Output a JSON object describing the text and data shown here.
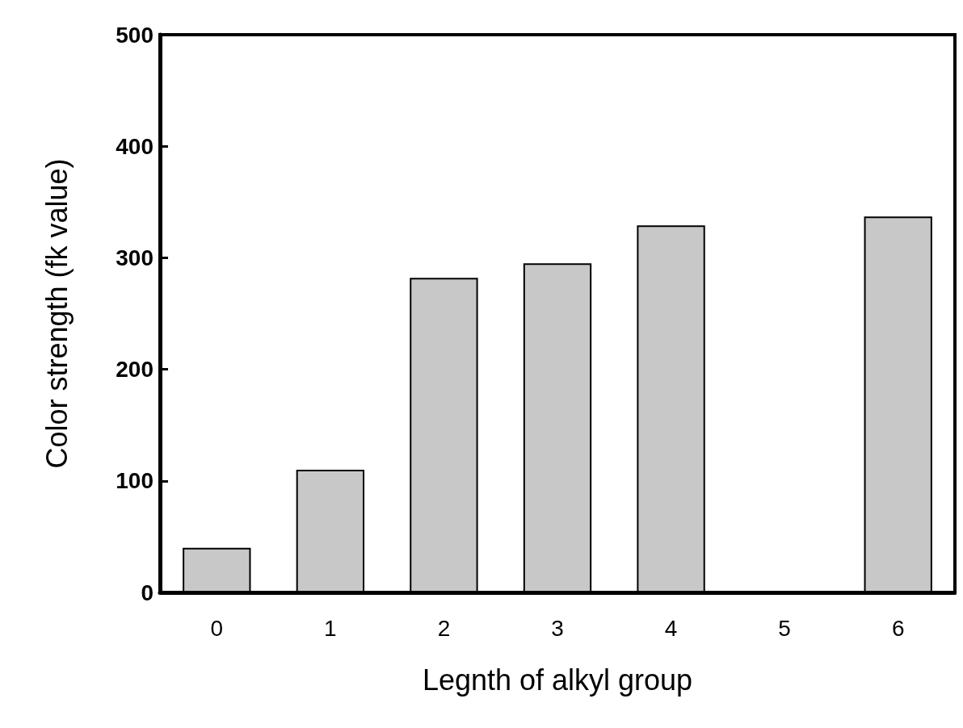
{
  "chart_data": {
    "type": "bar",
    "xlabel": "Legnth of alkyl group",
    "ylabel": "Color strength (fk value)",
    "categories": [
      "0",
      "1",
      "2",
      "3",
      "4",
      "5",
      "6"
    ],
    "values": [
      40,
      110,
      282,
      295,
      329,
      null,
      337
    ],
    "color": "#c8c8c8",
    "ylim": [
      0,
      500
    ],
    "yticks": [
      0,
      100,
      200,
      300,
      400,
      500
    ],
    "grid": false
  }
}
